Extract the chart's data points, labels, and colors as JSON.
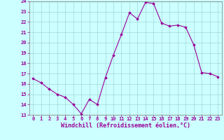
{
  "x": [
    0,
    1,
    2,
    3,
    4,
    5,
    6,
    7,
    8,
    9,
    10,
    11,
    12,
    13,
    14,
    15,
    16,
    17,
    18,
    19,
    20,
    21,
    22,
    23
  ],
  "y": [
    16.5,
    16.1,
    15.5,
    15.0,
    14.7,
    14.0,
    13.1,
    14.5,
    14.0,
    16.6,
    18.8,
    20.8,
    22.9,
    22.3,
    23.9,
    23.8,
    21.9,
    21.6,
    21.7,
    21.5,
    19.8,
    17.1,
    17.0,
    16.7
  ],
  "line_color": "#990099",
  "marker": "D",
  "marker_size": 1.8,
  "bg_color": "#ccffff",
  "grid_color": "#99cccc",
  "xlabel": "Windchill (Refroidissement éolien,°C)",
  "xlabel_color": "#990099",
  "tick_color": "#990099",
  "spine_color": "#777777",
  "ylim": [
    13,
    24
  ],
  "xlim": [
    -0.5,
    23.5
  ],
  "yticks": [
    13,
    14,
    15,
    16,
    17,
    18,
    19,
    20,
    21,
    22,
    23,
    24
  ],
  "xticks": [
    0,
    1,
    2,
    3,
    4,
    5,
    6,
    7,
    8,
    9,
    10,
    11,
    12,
    13,
    14,
    15,
    16,
    17,
    18,
    19,
    20,
    21,
    22,
    23
  ],
  "tick_fontsize": 5.0,
  "xlabel_fontsize": 6.0,
  "linewidth": 0.8
}
